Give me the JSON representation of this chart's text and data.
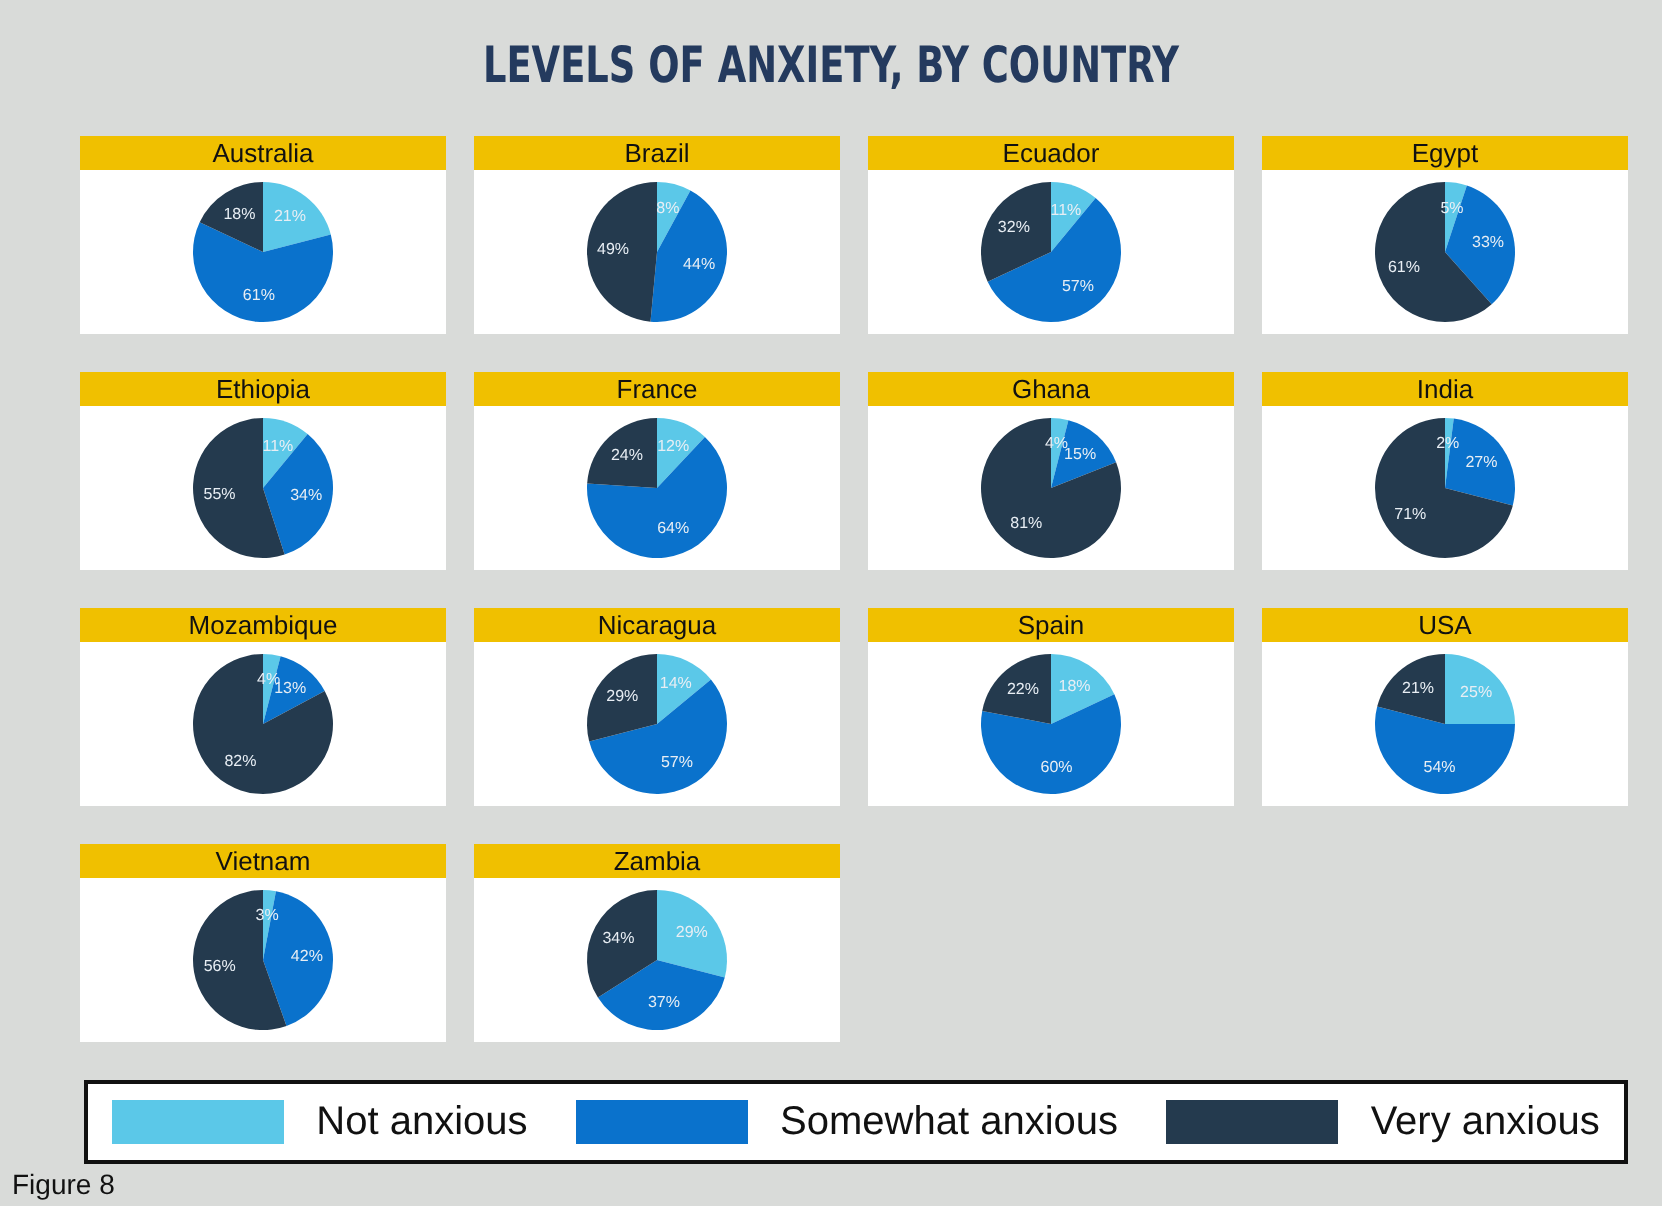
{
  "chart_data": [
    {
      "type": "other",
      "title": "LEVELS OF ANXIETY, BY COUNTRY",
      "annotations": [
        "Figure 8"
      ]
    },
    {
      "type": "pie",
      "title": "Australia",
      "categories": [
        null,
        null,
        null
      ],
      "values": [
        21,
        61,
        18
      ],
      "value_labels": [
        "21%",
        "61%",
        "18%"
      ],
      "colors": [
        "#5bc8e8",
        "#0a72cc",
        "#243a4e"
      ]
    },
    {
      "type": "pie",
      "title": "Brazil",
      "categories": [
        null,
        null,
        null
      ],
      "values": [
        8,
        44,
        49
      ],
      "value_labels": [
        "8%",
        "44%",
        "49%"
      ],
      "colors": [
        "#5bc8e8",
        "#0a72cc",
        "#243a4e"
      ]
    },
    {
      "type": "pie",
      "title": "Ecuador",
      "categories": [
        null,
        null,
        null
      ],
      "values": [
        11,
        57,
        32
      ],
      "value_labels": [
        "11%",
        "57%",
        "32%"
      ],
      "colors": [
        "#5bc8e8",
        "#0a72cc",
        "#243a4e"
      ]
    },
    {
      "type": "pie",
      "title": "Egypt",
      "categories": [
        null,
        null,
        null
      ],
      "values": [
        5,
        33,
        61
      ],
      "value_labels": [
        "5%",
        "33%",
        "61%"
      ],
      "colors": [
        "#5bc8e8",
        "#0a72cc",
        "#243a4e"
      ]
    },
    {
      "type": "pie",
      "title": "Ethiopia",
      "categories": [
        null,
        null,
        null
      ],
      "values": [
        11,
        34,
        55
      ],
      "value_labels": [
        "11%",
        "34%",
        "55%"
      ],
      "colors": [
        "#5bc8e8",
        "#0a72cc",
        "#243a4e"
      ]
    },
    {
      "type": "pie",
      "title": "France",
      "categories": [
        null,
        null,
        null
      ],
      "values": [
        12,
        64,
        24
      ],
      "value_labels": [
        "12%",
        "64%",
        "24%"
      ],
      "colors": [
        "#5bc8e8",
        "#0a72cc",
        "#243a4e"
      ]
    },
    {
      "type": "pie",
      "title": "Ghana",
      "categories": [
        null,
        null,
        null
      ],
      "values": [
        4,
        15,
        81
      ],
      "value_labels": [
        "4%",
        "15%",
        "81%"
      ],
      "colors": [
        "#5bc8e8",
        "#0a72cc",
        "#243a4e"
      ]
    },
    {
      "type": "pie",
      "title": "India",
      "categories": [
        null,
        null,
        null
      ],
      "values": [
        2,
        27,
        71
      ],
      "value_labels": [
        "2%",
        "27%",
        "71%"
      ],
      "colors": [
        "#5bc8e8",
        "#0a72cc",
        "#243a4e"
      ]
    },
    {
      "type": "pie",
      "title": "Mozambique",
      "categories": [
        null,
        null,
        null
      ],
      "values": [
        4,
        13,
        82
      ],
      "value_labels": [
        "4%",
        "13%",
        "82%"
      ],
      "colors": [
        "#5bc8e8",
        "#0a72cc",
        "#243a4e"
      ]
    },
    {
      "type": "pie",
      "title": "Nicaragua",
      "categories": [
        null,
        null,
        null
      ],
      "values": [
        14,
        57,
        29
      ],
      "value_labels": [
        "14%",
        "57%",
        "29%"
      ],
      "colors": [
        "#5bc8e8",
        "#0a72cc",
        "#243a4e"
      ]
    },
    {
      "type": "pie",
      "title": "Spain",
      "categories": [
        null,
        null,
        null
      ],
      "values": [
        18,
        60,
        22
      ],
      "value_labels": [
        "18%",
        "60%",
        "22%"
      ],
      "colors": [
        "#5bc8e8",
        "#0a72cc",
        "#243a4e"
      ]
    },
    {
      "type": "pie",
      "title": "USA",
      "categories": [
        null,
        null,
        null
      ],
      "values": [
        25,
        54,
        21
      ],
      "value_labels": [
        "25%",
        "54%",
        "21%"
      ],
      "colors": [
        "#5bc8e8",
        "#0a72cc",
        "#243a4e"
      ]
    },
    {
      "type": "pie",
      "title": "Vietnam",
      "categories": [
        null,
        null,
        null
      ],
      "values": [
        3,
        42,
        56
      ],
      "value_labels": [
        "3%",
        "42%",
        "56%"
      ],
      "colors": [
        "#5bc8e8",
        "#0a72cc",
        "#243a4e"
      ]
    },
    {
      "type": "pie",
      "title": "Zambia",
      "categories": [
        "Not anxious",
        "Somewhat anxious",
        "Very anxious"
      ],
      "values": [
        29,
        37,
        34
      ],
      "value_labels": [
        "29%",
        "37%",
        "34%"
      ],
      "colors": [
        "#5bc8e8",
        "#0a72cc",
        "#243a4e"
      ],
      "legend": "bottom"
    }
  ]
}
